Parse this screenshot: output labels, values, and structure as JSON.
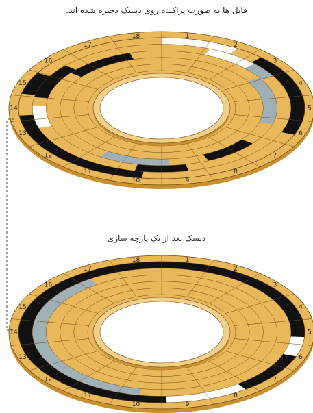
{
  "captions": {
    "top": "فایل ها به صورت پراکنده روی دیسک ذخیره شده اند.",
    "bottom": "دیسک بعد از یک پارچه سازی"
  },
  "sectors": [
    "1",
    "2",
    "3",
    "4",
    "5",
    "6",
    "7",
    "8",
    "9",
    "10",
    "11",
    "12",
    "13",
    "14",
    "15",
    "16",
    "17",
    "18"
  ],
  "colors": {
    "disk_fill": "#e9b85a",
    "disk_edge": "#c8902f",
    "inner_fill": "#f3d08a",
    "line": "#6b4a15",
    "file_black": "#111111",
    "file_gray": "#9fb0b6",
    "free_white": "#ffffff"
  },
  "fragmented_disk": {
    "tracks": [
      {
        "track": 1,
        "segments": [
          {
            "from": 0,
            "to": 1.6,
            "kind": "white"
          },
          {
            "from": 2.2,
            "to": 5.6,
            "kind": "black"
          },
          {
            "from": 9.4,
            "to": 13.2,
            "kind": "black"
          },
          {
            "from": 14.1,
            "to": 15.0,
            "kind": "black"
          }
        ]
      },
      {
        "track": 2,
        "segments": [
          {
            "from": 1.1,
            "to": 2.3,
            "kind": "white"
          },
          {
            "from": 2.3,
            "to": 3.0,
            "kind": "gray"
          },
          {
            "from": 12.6,
            "to": 13.6,
            "kind": "white"
          },
          {
            "from": 14.0,
            "to": 15.6,
            "kind": "black"
          },
          {
            "from": 8.4,
            "to": 9.6,
            "kind": "black"
          }
        ]
      },
      {
        "track": 3,
        "segments": [
          {
            "from": 2.9,
            "to": 5.3,
            "kind": "gray"
          },
          {
            "from": 6.4,
            "to": 7.8,
            "kind": "black"
          },
          {
            "from": 8.8,
            "to": 10.6,
            "kind": "gray"
          },
          {
            "from": 15.4,
            "to": 17.2,
            "kind": "black"
          }
        ]
      }
    ]
  },
  "defragmented_disk": {
    "tracks": [
      {
        "track": 1,
        "segments": [
          {
            "from": 0,
            "to": 4.7,
            "kind": "black"
          },
          {
            "from": 4.7,
            "to": 5.5,
            "kind": "white"
          },
          {
            "from": 5.5,
            "to": 7.2,
            "kind": "black"
          },
          {
            "from": 7.2,
            "to": 8.9,
            "kind": "white"
          },
          {
            "from": 8.9,
            "to": 18,
            "kind": "black"
          }
        ]
      },
      {
        "track": 2,
        "segments": [
          {
            "from": 9.5,
            "to": 16.3,
            "kind": "gray"
          }
        ]
      }
    ]
  }
}
